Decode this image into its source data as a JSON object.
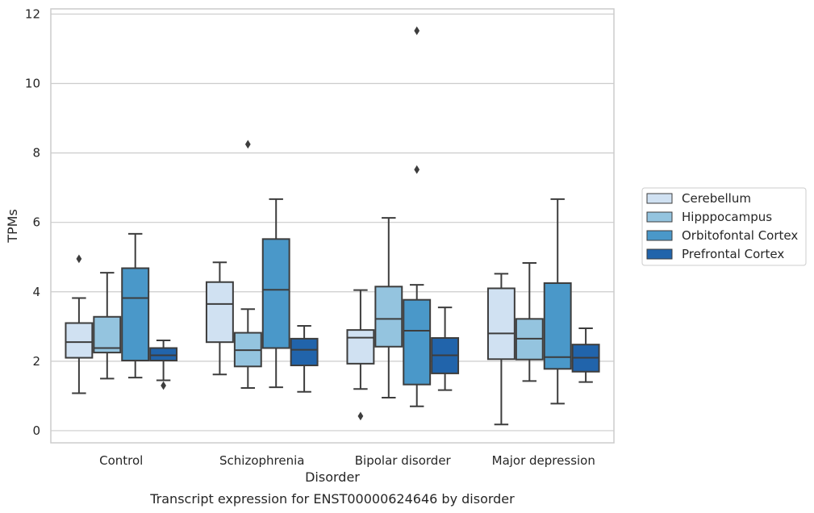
{
  "chart_data": {
    "type": "box",
    "xlabel": "Disorder",
    "ylabel": "TPMs",
    "caption": "Transcript expression for ENST00000624646 by disorder",
    "ylim": [
      -0.35,
      12.15
    ],
    "yticks": [
      0,
      2,
      4,
      6,
      8,
      10,
      12
    ],
    "grid": "horizontal",
    "legend_position": "right",
    "categories": [
      "Control",
      "Schizophrenia",
      "Bipolar disorder",
      "Major depression"
    ],
    "series": [
      {
        "name": "Cerebellum",
        "color": "#d0e1f2",
        "boxes": [
          {
            "whislo": 1.08,
            "q1": 2.1,
            "med": 2.55,
            "q3": 3.1,
            "whishi": 3.82,
            "fliers": [
              4.95
            ]
          },
          {
            "whislo": 1.62,
            "q1": 2.55,
            "med": 3.65,
            "q3": 4.28,
            "whishi": 4.85,
            "fliers": []
          },
          {
            "whislo": 1.2,
            "q1": 1.93,
            "med": 2.68,
            "q3": 2.9,
            "whishi": 4.05,
            "fliers": [
              0.42
            ]
          },
          {
            "whislo": 0.18,
            "q1": 2.06,
            "med": 2.8,
            "q3": 4.1,
            "whishi": 4.52,
            "fliers": []
          }
        ]
      },
      {
        "name": "Hipppocampus",
        "color": "#94c4df",
        "boxes": [
          {
            "whislo": 1.5,
            "q1": 2.25,
            "med": 2.38,
            "q3": 3.28,
            "whishi": 4.55,
            "fliers": []
          },
          {
            "whislo": 1.23,
            "q1": 1.85,
            "med": 2.32,
            "q3": 2.82,
            "whishi": 3.5,
            "fliers": [
              8.25
            ]
          },
          {
            "whislo": 0.95,
            "q1": 2.42,
            "med": 3.22,
            "q3": 4.15,
            "whishi": 6.13,
            "fliers": []
          },
          {
            "whislo": 1.43,
            "q1": 2.05,
            "med": 2.65,
            "q3": 3.22,
            "whishi": 4.83,
            "fliers": []
          }
        ]
      },
      {
        "name": "Orbitofontal Cortex",
        "color": "#4a98c9",
        "boxes": [
          {
            "whislo": 1.53,
            "q1": 2.02,
            "med": 3.82,
            "q3": 4.68,
            "whishi": 5.67,
            "fliers": []
          },
          {
            "whislo": 1.25,
            "q1": 2.38,
            "med": 4.06,
            "q3": 5.52,
            "whishi": 6.67,
            "fliers": []
          },
          {
            "whislo": 0.7,
            "q1": 1.33,
            "med": 2.88,
            "q3": 3.77,
            "whishi": 4.2,
            "fliers": [
              7.52,
              11.52
            ]
          },
          {
            "whislo": 0.78,
            "q1": 1.78,
            "med": 2.12,
            "q3": 4.25,
            "whishi": 6.67,
            "fliers": []
          }
        ]
      },
      {
        "name": "Prefrontal Cortex",
        "color": "#2164ab",
        "boxes": [
          {
            "whislo": 1.45,
            "q1": 2.02,
            "med": 2.17,
            "q3": 2.38,
            "whishi": 2.6,
            "fliers": [
              1.3
            ]
          },
          {
            "whislo": 1.12,
            "q1": 1.88,
            "med": 2.33,
            "q3": 2.65,
            "whishi": 3.02,
            "fliers": []
          },
          {
            "whislo": 1.17,
            "q1": 1.65,
            "med": 2.17,
            "q3": 2.67,
            "whishi": 3.55,
            "fliers": []
          },
          {
            "whislo": 1.4,
            "q1": 1.7,
            "med": 2.1,
            "q3": 2.48,
            "whishi": 2.95,
            "fliers": []
          }
        ]
      }
    ]
  }
}
